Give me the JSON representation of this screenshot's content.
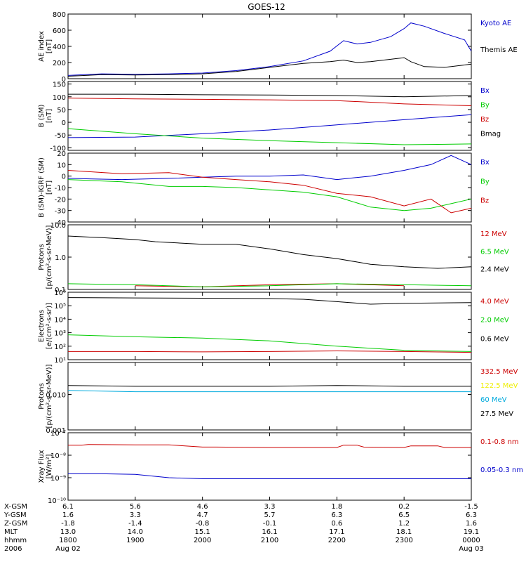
{
  "title": "GOES-12",
  "chart_data": [
    {
      "type": "line",
      "panel": "ae",
      "ylabel_line1": "AE index",
      "ylabel_line2": "[nT]",
      "ylim": [
        0,
        800
      ],
      "yticks": [
        {
          "v": 0,
          "label": "0"
        },
        {
          "v": 200,
          "label": "200"
        },
        {
          "v": 400,
          "label": "400"
        },
        {
          "v": 600,
          "label": "600"
        },
        {
          "v": 800,
          "label": "800"
        }
      ],
      "series": [
        {
          "name": "Kyoto AE",
          "color": "#0000cc",
          "x": [
            18.0,
            18.5,
            19.0,
            19.5,
            20.0,
            20.5,
            21.0,
            21.5,
            21.9,
            22.1,
            22.3,
            22.5,
            22.8,
            23.0,
            23.1,
            23.3,
            23.6,
            23.9,
            24.0
          ],
          "values": [
            40,
            60,
            55,
            60,
            70,
            100,
            150,
            220,
            340,
            470,
            430,
            450,
            520,
            620,
            690,
            650,
            560,
            480,
            340
          ]
        },
        {
          "name": "Themis AE",
          "color": "#000000",
          "x": [
            18.0,
            18.5,
            19.0,
            19.5,
            20.0,
            20.5,
            21.0,
            21.5,
            21.9,
            22.1,
            22.3,
            22.5,
            22.8,
            23.0,
            23.1,
            23.3,
            23.6,
            23.9,
            24.0
          ],
          "values": [
            30,
            50,
            45,
            50,
            60,
            90,
            140,
            190,
            210,
            230,
            200,
            210,
            240,
            260,
            210,
            150,
            140,
            170,
            180
          ]
        }
      ]
    },
    {
      "type": "line",
      "panel": "bsm",
      "ylabel_line1": "B (SM)",
      "ylabel_line2": "[nT]",
      "ylim": [
        -110,
        160
      ],
      "yticks": [
        {
          "v": -100,
          "label": "-100"
        },
        {
          "v": -50,
          "label": "-50"
        },
        {
          "v": 0,
          "label": "0"
        },
        {
          "v": 50,
          "label": "50"
        },
        {
          "v": 100,
          "label": "100"
        },
        {
          "v": 150,
          "label": "150"
        }
      ],
      "series": [
        {
          "name": "Bx",
          "color": "#0000cc",
          "x": [
            18.0,
            19.0,
            20.0,
            21.0,
            22.0,
            23.0,
            24.0
          ],
          "values": [
            -60,
            -58,
            -45,
            -30,
            -10,
            10,
            30
          ]
        },
        {
          "name": "By",
          "color": "#00cc00",
          "x": [
            18.0,
            19.0,
            20.0,
            21.0,
            22.0,
            23.0,
            24.0
          ],
          "values": [
            -25,
            -45,
            -62,
            -72,
            -80,
            -88,
            -85
          ]
        },
        {
          "name": "Bz",
          "color": "#cc0000",
          "x": [
            18.0,
            19.0,
            20.0,
            21.0,
            22.0,
            23.0,
            24.0
          ],
          "values": [
            95,
            92,
            90,
            88,
            85,
            72,
            65
          ]
        },
        {
          "name": "Bmag",
          "color": "#000000",
          "x": [
            18.0,
            19.0,
            20.0,
            21.0,
            22.0,
            23.0,
            24.0
          ],
          "values": [
            110,
            110,
            108,
            107,
            105,
            100,
            105
          ]
        }
      ]
    },
    {
      "type": "line",
      "panel": "bigrf",
      "ylabel_line1": "B (SM)-IGRF (SM)",
      "ylabel_line2": "[nT]",
      "ylim": [
        -40,
        20
      ],
      "yticks": [
        {
          "v": -40,
          "label": "-40"
        },
        {
          "v": -30,
          "label": "-30"
        },
        {
          "v": -20,
          "label": "-20"
        },
        {
          "v": -10,
          "label": "-10"
        },
        {
          "v": 0,
          "label": "0"
        },
        {
          "v": 10,
          "label": "10"
        },
        {
          "v": 20,
          "label": "20"
        }
      ],
      "series": [
        {
          "name": "Bx",
          "color": "#0000cc",
          "x": [
            18.0,
            18.8,
            19.5,
            20.0,
            20.5,
            21.0,
            21.5,
            22.0,
            22.5,
            23.0,
            23.4,
            23.7,
            24.0
          ],
          "values": [
            -2,
            -3,
            -2,
            -1,
            0,
            0,
            1,
            -3,
            0,
            5,
            10,
            18,
            10
          ]
        },
        {
          "name": "By",
          "color": "#00cc00",
          "x": [
            18.0,
            18.8,
            19.5,
            20.0,
            20.5,
            21.0,
            21.5,
            22.0,
            22.5,
            23.0,
            23.4,
            23.7,
            24.0
          ],
          "values": [
            -3,
            -5,
            -9,
            -9,
            -10,
            -12,
            -14,
            -18,
            -27,
            -30,
            -28,
            -24,
            -20
          ]
        },
        {
          "name": "Bz",
          "color": "#cc0000",
          "x": [
            18.0,
            18.8,
            19.5,
            20.0,
            20.5,
            21.0,
            21.5,
            22.0,
            22.5,
            23.0,
            23.4,
            23.7,
            24.0
          ],
          "values": [
            5,
            2,
            3,
            -1,
            -3,
            -5,
            -8,
            -15,
            -18,
            -26,
            -20,
            -32,
            -28
          ]
        }
      ]
    },
    {
      "type": "line",
      "panel": "protons_low",
      "log": true,
      "ylabel_line1": "Protons",
      "ylabel_line2": "[p/(cm²-s-sr-MeV)]",
      "ylim": [
        0.1,
        10.0
      ],
      "yticks": [
        {
          "v": 0.1,
          "label": "0.1"
        },
        {
          "v": 1.0,
          "label": "1.0"
        },
        {
          "v": 10.0,
          "label": "10.0"
        }
      ],
      "series": [
        {
          "name": "12 MeV",
          "color": "#cc0000",
          "x": [
            19.0,
            20.0,
            21.0,
            22.0,
            23.0
          ],
          "values": [
            0.13,
            0.12,
            0.14,
            0.15,
            0.13
          ]
        },
        {
          "name": "6.5 MeV",
          "color": "#00cc00",
          "x": [
            18.0,
            19.0,
            20.0,
            21.0,
            22.0,
            23.0,
            24.0
          ],
          "values": [
            0.15,
            0.14,
            0.12,
            0.13,
            0.15,
            0.14,
            0.13
          ]
        },
        {
          "name": "2.4 MeV",
          "color": "#000000",
          "x": [
            18.0,
            18.5,
            19.0,
            19.3,
            20.0,
            20.5,
            21.0,
            21.5,
            22.0,
            22.5,
            23.0,
            23.5,
            24.0
          ],
          "values": [
            4.5,
            4.0,
            3.5,
            3.0,
            2.5,
            2.5,
            1.8,
            1.2,
            0.9,
            0.6,
            0.5,
            0.45,
            0.5
          ]
        }
      ]
    },
    {
      "type": "line",
      "panel": "electrons",
      "log": true,
      "ylabel_line1": "Electrons",
      "ylabel_line2": "[e/(cm²-s-sr)]",
      "ylim": [
        10,
        1000000
      ],
      "yticks": [
        {
          "v": 10,
          "label": "10¹"
        },
        {
          "v": 100,
          "label": "10²"
        },
        {
          "v": 1000,
          "label": "10³"
        },
        {
          "v": 10000,
          "label": "10⁴"
        },
        {
          "v": 100000,
          "label": "10⁵"
        },
        {
          "v": 1000000,
          "label": "10⁶"
        }
      ],
      "series": [
        {
          "name": "4.0 MeV",
          "color": "#cc0000",
          "x": [
            18.0,
            19.0,
            20.0,
            21.0,
            22.0,
            23.0,
            24.0
          ],
          "values": [
            40,
            40,
            38,
            40,
            45,
            40,
            35
          ]
        },
        {
          "name": "2.0 MeV",
          "color": "#00cc00",
          "x": [
            18.0,
            19.0,
            20.0,
            21.0,
            22.0,
            23.0,
            24.0
          ],
          "values": [
            700,
            500,
            400,
            250,
            100,
            50,
            40
          ]
        },
        {
          "name": "0.6 MeV",
          "color": "#000000",
          "x": [
            18.0,
            19.0,
            20.0,
            21.0,
            21.5,
            22.0,
            22.5,
            23.0,
            23.5,
            24.0
          ],
          "values": [
            400000,
            380000,
            360000,
            340000,
            300000,
            200000,
            130000,
            150000,
            160000,
            170000
          ]
        }
      ]
    },
    {
      "type": "line",
      "panel": "protons_high",
      "log": true,
      "ylabel_line1": "Protons",
      "ylabel_line2": "[p/(cm²-s-sr-MeV)]",
      "ylim": [
        0.001,
        0.08
      ],
      "yticks": [
        {
          "v": 0.001,
          "label": "0.001"
        },
        {
          "v": 0.01,
          "label": "0.010"
        }
      ],
      "series": [
        {
          "name": "332.5 MeV",
          "color": "#cc0000",
          "x": [
            18.0,
            24.0
          ],
          "values": [
            0.0,
            0.0
          ]
        },
        {
          "name": "122.5 MeV",
          "color": "#eeee00",
          "x": [
            18.0,
            24.0
          ],
          "values": [
            0.0,
            0.0
          ]
        },
        {
          "name": "60 MeV",
          "color": "#00aadd",
          "x": [
            18.0,
            19.0,
            20.0,
            21.0,
            22.0,
            23.0,
            24.0
          ],
          "values": [
            0.013,
            0.012,
            0.012,
            0.012,
            0.012,
            0.012,
            0.012
          ]
        },
        {
          "name": "27.5 MeV",
          "color": "#000000",
          "x": [
            18.0,
            19.0,
            20.0,
            21.0,
            22.0,
            23.0,
            24.0
          ],
          "values": [
            0.018,
            0.017,
            0.017,
            0.017,
            0.018,
            0.017,
            0.017
          ]
        }
      ]
    },
    {
      "type": "line",
      "panel": "xray",
      "log": true,
      "ylabel_line1": "Xray Flux",
      "ylabel_line2": "[W/m²]",
      "ylim": [
        1e-10,
        1e-07
      ],
      "yticks": [
        {
          "v": 1e-10,
          "label": "10⁻¹⁰"
        },
        {
          "v": 1e-09,
          "label": "10⁻⁹"
        },
        {
          "v": 1e-08,
          "label": "10⁻⁸"
        },
        {
          "v": 1e-07,
          "label": "10⁻⁷"
        }
      ],
      "series": [
        {
          "name": "0.1-0.8 nm",
          "color": "#cc0000",
          "x": [
            18.0,
            18.2,
            18.3,
            19.0,
            19.5,
            20.0,
            20.2,
            21.0,
            22.0,
            22.1,
            22.3,
            22.4,
            23.0,
            23.1,
            23.5,
            23.6,
            24.0
          ],
          "values": [
            2.8e-08,
            2.8e-08,
            3e-08,
            2.9e-08,
            2.9e-08,
            2.3e-08,
            2.3e-08,
            2.2e-08,
            2.2e-08,
            2.8e-08,
            2.8e-08,
            2.3e-08,
            2.2e-08,
            2.6e-08,
            2.6e-08,
            2.2e-08,
            2.2e-08
          ]
        },
        {
          "name": "0.05-0.3 nm",
          "color": "#0000cc",
          "x": [
            18.0,
            18.5,
            19.0,
            19.5,
            20.0,
            21.0,
            22.0,
            23.0,
            24.0
          ],
          "values": [
            1.5e-09,
            1.5e-09,
            1.4e-09,
            1e-09,
            9e-10,
            9e-10,
            9e-10,
            9e-10,
            9e-10
          ]
        }
      ]
    }
  ],
  "ephemeris": {
    "row_labels": [
      "X-GSM",
      "Y-GSM",
      "Z-GSM",
      "MLT",
      "hhmm",
      "2006"
    ],
    "columns": [
      {
        "x": 18.0,
        "values": [
          "6.1",
          "1.6",
          "-1.8",
          "13.0",
          "1800",
          "Aug 02"
        ]
      },
      {
        "x": 19.0,
        "values": [
          "5.6",
          "3.3",
          "-1.4",
          "14.0",
          "1900",
          ""
        ]
      },
      {
        "x": 20.0,
        "values": [
          "4.6",
          "4.7",
          "-0.8",
          "15.1",
          "2000",
          ""
        ]
      },
      {
        "x": 21.0,
        "values": [
          "3.3",
          "5.7",
          "-0.1",
          "16.1",
          "2100",
          ""
        ]
      },
      {
        "x": 22.0,
        "values": [
          "1.8",
          "6.3",
          "0.6",
          "17.1",
          "2200",
          ""
        ]
      },
      {
        "x": 23.0,
        "values": [
          "0.2",
          "6.5",
          "1.2",
          "18.1",
          "2300",
          ""
        ]
      },
      {
        "x": 24.0,
        "values": [
          "-1.5",
          "6.3",
          "1.6",
          "19.1",
          "0000",
          "Aug 03"
        ]
      }
    ]
  }
}
